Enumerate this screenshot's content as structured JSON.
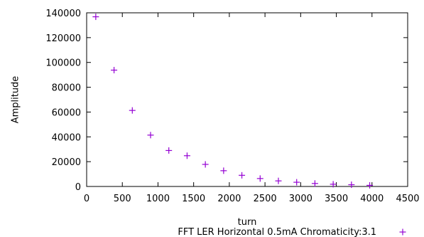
{
  "chart_data": {
    "type": "scatter",
    "xlabel": "turn",
    "ylabel": "Amplitude",
    "xlim": [
      0,
      4500
    ],
    "ylim": [
      0,
      140000
    ],
    "grid": false,
    "legend_position": "bottom-right",
    "x_ticks": [
      "0",
      "500",
      "1000",
      "1500",
      "2000",
      "2500",
      "3000",
      "3500",
      "4000",
      "4500"
    ],
    "y_ticks": [
      "0",
      "20000",
      "40000",
      "60000",
      "80000",
      "100000",
      "120000",
      "140000"
    ],
    "series": [
      {
        "name": "FFT LER Horizontal 0.5mA Chromaticity:3.1",
        "color": "#9400d3",
        "marker": "plus",
        "points": [
          {
            "x": 128,
            "y": 136800
          },
          {
            "x": 384,
            "y": 93800
          },
          {
            "x": 640,
            "y": 61300
          },
          {
            "x": 896,
            "y": 41400
          },
          {
            "x": 1152,
            "y": 29000
          },
          {
            "x": 1408,
            "y": 24800
          },
          {
            "x": 1664,
            "y": 17800
          },
          {
            "x": 1920,
            "y": 12700
          },
          {
            "x": 2176,
            "y": 9000
          },
          {
            "x": 2432,
            "y": 6400
          },
          {
            "x": 2688,
            "y": 4500
          },
          {
            "x": 2944,
            "y": 3400
          },
          {
            "x": 3200,
            "y": 2400
          },
          {
            "x": 3456,
            "y": 1800
          },
          {
            "x": 3712,
            "y": 1400
          },
          {
            "x": 3968,
            "y": 900
          }
        ]
      }
    ]
  }
}
